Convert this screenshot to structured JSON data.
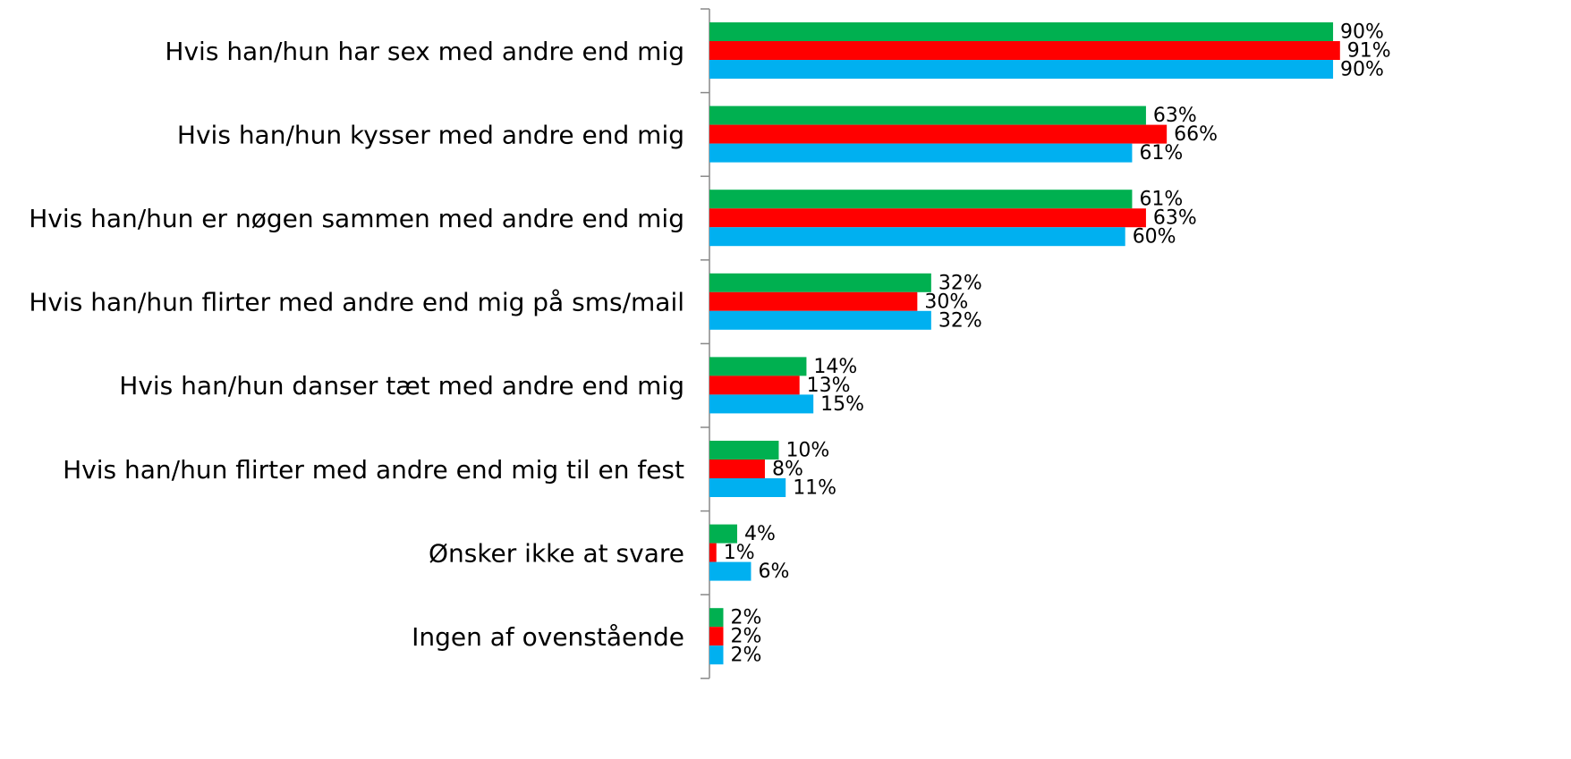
{
  "chart_data": {
    "type": "barh",
    "categories": [
      "Hvis han/hun har sex med andre end mig",
      "Hvis han/hun kysser med andre end mig",
      "Hvis han/hun er nøgen sammen med andre end mig",
      "Hvis han/hun flirter med andre end mig på sms/mail",
      "Hvis han/hun danser tæt med andre end mig",
      "Hvis han/hun flirter med andre end mig til en fest",
      "Ønsker ikke at svare",
      "Ingen af ovenstående"
    ],
    "series": [
      {
        "color": "#00b050",
        "values": [
          90,
          63,
          61,
          32,
          14,
          10,
          4,
          2
        ],
        "value_labels": [
          "90%",
          "63%",
          "61%",
          "32%",
          "14%",
          "10%",
          "4%",
          "2%"
        ]
      },
      {
        "color": "#ff0000",
        "values": [
          91,
          66,
          63,
          30,
          13,
          8,
          1,
          2
        ],
        "value_labels": [
          "91%",
          "66%",
          "63%",
          "30%",
          "13%",
          "8%",
          "1%",
          "2%"
        ]
      },
      {
        "color": "#00b0f0",
        "values": [
          90,
          61,
          60,
          32,
          15,
          11,
          6,
          2
        ],
        "value_labels": [
          "90%",
          "61%",
          "60%",
          "32%",
          "15%",
          "11%",
          "6%",
          "2%"
        ]
      }
    ]
  }
}
